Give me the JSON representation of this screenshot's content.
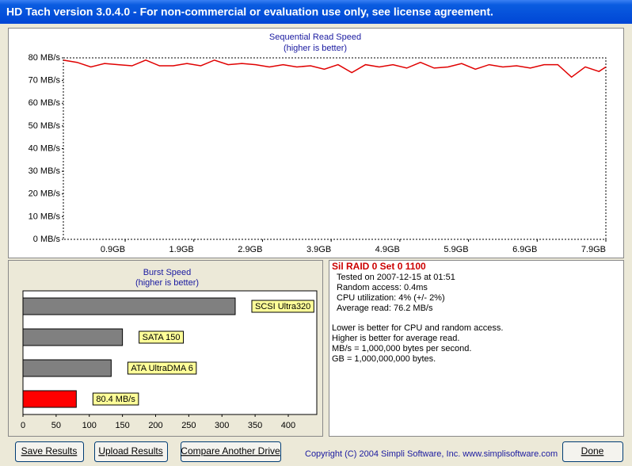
{
  "window": {
    "title": "HD Tach version 3.0.4.0  - For non-commercial or evaluation use only, see license agreement."
  },
  "chart_data": [
    {
      "type": "line",
      "title": "Sequential Read Speed",
      "subtitle": "(higher is better)",
      "x": [
        0,
        0.2,
        0.4,
        0.6,
        0.8,
        1.0,
        1.2,
        1.4,
        1.6,
        1.8,
        2.0,
        2.2,
        2.4,
        2.6,
        2.8,
        3.0,
        3.2,
        3.4,
        3.6,
        3.8,
        4.0,
        4.2,
        4.4,
        4.6,
        4.8,
        5.0,
        5.2,
        5.4,
        5.6,
        5.8,
        6.0,
        6.2,
        6.4,
        6.6,
        6.8,
        7.0,
        7.2,
        7.4,
        7.6,
        7.8,
        7.9
      ],
      "series": [
        {
          "name": "Read speed",
          "color": "#e00000",
          "values": [
            79,
            78,
            76,
            77.5,
            77,
            76.5,
            79,
            76.5,
            76.5,
            77.5,
            76.5,
            79,
            77,
            77.5,
            77,
            76,
            77,
            76,
            76.5,
            75,
            77,
            73.5,
            77,
            76,
            77,
            75.5,
            78,
            75.5,
            76,
            77.5,
            75,
            77,
            76,
            76.5,
            75.5,
            77,
            77,
            71.5,
            76,
            74,
            76
          ]
        }
      ],
      "xlim": [
        0,
        7.9
      ],
      "xticks": [
        {
          "value": 0.9,
          "label": "0.9GB"
        },
        {
          "value": 1.9,
          "label": "1.9GB"
        },
        {
          "value": 2.9,
          "label": "2.9GB"
        },
        {
          "value": 3.9,
          "label": "3.9GB"
        },
        {
          "value": 4.9,
          "label": "4.9GB"
        },
        {
          "value": 5.9,
          "label": "5.9GB"
        },
        {
          "value": 6.9,
          "label": "6.9GB"
        },
        {
          "value": 7.9,
          "label": "7.9GB"
        }
      ],
      "ylim": [
        0,
        80
      ],
      "yticks": [
        {
          "value": 0,
          "label": "0 MB/s"
        },
        {
          "value": 10,
          "label": "10 MB/s"
        },
        {
          "value": 20,
          "label": "20 MB/s"
        },
        {
          "value": 30,
          "label": "30 MB/s"
        },
        {
          "value": 40,
          "label": "40 MB/s"
        },
        {
          "value": 50,
          "label": "50 MB/s"
        },
        {
          "value": 60,
          "label": "60 MB/s"
        },
        {
          "value": 70,
          "label": "70 MB/s"
        },
        {
          "value": 80,
          "label": "80 MB/s"
        }
      ]
    },
    {
      "type": "hbar",
      "title": "Burst Speed",
      "subtitle": "(higher is better)",
      "categories": [
        "SCSI Ultra320",
        "SATA 150",
        "ATA UltraDMA 6",
        null
      ],
      "values": [
        320,
        150,
        133,
        80.4
      ],
      "value_labels": [
        null,
        null,
        null,
        "80.4 MB/s"
      ],
      "colors": [
        "#808080",
        "#808080",
        "#808080",
        "#ff0000"
      ],
      "xlim": [
        0,
        443
      ],
      "xticks": [
        0,
        50,
        100,
        150,
        200,
        250,
        300,
        350,
        400
      ]
    }
  ],
  "info": {
    "heading": "Sil RAID 0 Set 0 1100",
    "results": [
      "Tested on 2007-12-15 at 01:51",
      "Random access: 0.4ms",
      "CPU utilization: 4% (+/- 2%)",
      "Average read: 76.2 MB/s"
    ],
    "notes": [
      "Lower is better for CPU and random access.",
      "Higher is better for average read.",
      "MB/s = 1,000,000 bytes per second.",
      "GB = 1,000,000,000 bytes."
    ]
  },
  "buttons": [
    "Save Results",
    "Upload Results",
    "Compare Another Drive"
  ],
  "done": "Done",
  "copyright": "Copyright (C) 2004 Simpli Software, Inc. www.simplisoftware.com"
}
